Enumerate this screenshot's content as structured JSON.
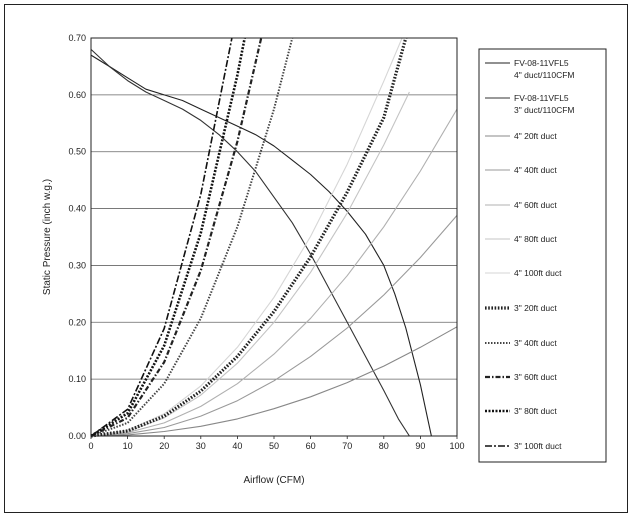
{
  "chart_data": {
    "type": "line",
    "title": "",
    "xlabel": "Airflow (CFM)",
    "ylabel": "Static Pressure (inch w.g.)",
    "xlim": [
      0,
      100
    ],
    "ylim": [
      0,
      0.7
    ],
    "xticks": [
      "0",
      "10",
      "20",
      "30",
      "40",
      "50",
      "60",
      "70",
      "80",
      "90",
      "100"
    ],
    "yticks": [
      "0.00",
      "0.10",
      "0.20",
      "0.30",
      "0.40",
      "0.50",
      "0.60",
      "0.70"
    ],
    "grid": "horizontal",
    "legend_position": "right",
    "series": [
      {
        "name": "FV-08-11VFL5\n4\" duct/110CFM",
        "color": "#222222",
        "width": 1.1,
        "dash": "",
        "x": [
          0,
          5,
          10,
          15,
          20,
          25,
          30,
          35,
          40,
          45,
          50,
          55,
          60,
          65,
          70,
          75,
          80,
          83,
          86,
          88,
          90,
          92,
          93
        ],
        "y": [
          0.67,
          0.65,
          0.63,
          0.61,
          0.6,
          0.59,
          0.575,
          0.56,
          0.545,
          0.53,
          0.51,
          0.485,
          0.46,
          0.43,
          0.395,
          0.355,
          0.3,
          0.25,
          0.19,
          0.14,
          0.09,
          0.03,
          0.0
        ]
      },
      {
        "name": "FV-08-11VFL5\n3\" duct/110CFM",
        "color": "#333333",
        "width": 1.1,
        "dash": "",
        "x": [
          0,
          5,
          10,
          15,
          20,
          25,
          30,
          35,
          40,
          45,
          50,
          55,
          60,
          65,
          70,
          75,
          80,
          84,
          87
        ],
        "y": [
          0.68,
          0.65,
          0.625,
          0.605,
          0.59,
          0.575,
          0.555,
          0.53,
          0.5,
          0.465,
          0.42,
          0.375,
          0.32,
          0.26,
          0.2,
          0.14,
          0.08,
          0.03,
          0.0
        ]
      },
      {
        "name": "4\" 20ft duct",
        "color": "#888888",
        "width": 1.1,
        "dash": "",
        "x": [
          0,
          10,
          20,
          30,
          40,
          50,
          60,
          70,
          80,
          90,
          100
        ],
        "y": [
          0.0,
          0.002,
          0.008,
          0.017,
          0.03,
          0.048,
          0.069,
          0.094,
          0.123,
          0.156,
          0.192
        ]
      },
      {
        "name": "4\" 40ft duct",
        "color": "#9a9a9a",
        "width": 1.1,
        "dash": "",
        "x": [
          0,
          10,
          20,
          30,
          40,
          50,
          60,
          70,
          80,
          90,
          100
        ],
        "y": [
          0.0,
          0.004,
          0.015,
          0.035,
          0.062,
          0.097,
          0.14,
          0.19,
          0.248,
          0.314,
          0.388
        ]
      },
      {
        "name": "4\" 60ft duct",
        "color": "#b0b0b0",
        "width": 1.1,
        "dash": "",
        "x": [
          0,
          10,
          20,
          30,
          40,
          50,
          60,
          70,
          80,
          90,
          100
        ],
        "y": [
          0.0,
          0.006,
          0.023,
          0.052,
          0.092,
          0.144,
          0.207,
          0.282,
          0.368,
          0.466,
          0.575
        ]
      },
      {
        "name": "4\" 80ft duct",
        "color": "#c4c4c4",
        "width": 1.1,
        "dash": "",
        "x": [
          0,
          10,
          20,
          30,
          40,
          50,
          60,
          70,
          80,
          87
        ],
        "y": [
          0.0,
          0.008,
          0.032,
          0.072,
          0.128,
          0.2,
          0.288,
          0.392,
          0.512,
          0.605
        ]
      },
      {
        "name": "4\" 100ft duct",
        "color": "#d6d6d6",
        "width": 1.1,
        "dash": "",
        "x": [
          0,
          10,
          20,
          30,
          40,
          50,
          60,
          70,
          80,
          85
        ],
        "y": [
          0.0,
          0.01,
          0.039,
          0.088,
          0.156,
          0.244,
          0.351,
          0.478,
          0.624,
          0.7
        ]
      },
      {
        "name": "3\" 20ft duct",
        "color": "#222222",
        "width": 3.2,
        "dash": "1.6,1.6",
        "x": [
          0,
          10,
          20,
          30,
          40,
          50,
          60,
          70,
          80,
          86
        ],
        "y": [
          0.0,
          0.009,
          0.035,
          0.079,
          0.14,
          0.219,
          0.315,
          0.429,
          0.56,
          0.7
        ]
      },
      {
        "name": "3\" 40ft duct",
        "color": "#444444",
        "width": 2.0,
        "dash": "1.5,1.5",
        "x": [
          0,
          10,
          20,
          30,
          40,
          50,
          55
        ],
        "y": [
          0.0,
          0.023,
          0.092,
          0.207,
          0.368,
          0.575,
          0.7
        ]
      },
      {
        "name": "3\" 60ft duct",
        "color": "#222222",
        "width": 2.2,
        "dash": "5,2,1.5,2",
        "x": [
          0,
          10,
          20,
          30,
          40,
          46.5
        ],
        "y": [
          0.0,
          0.032,
          0.13,
          0.291,
          0.518,
          0.7
        ]
      },
      {
        "name": "3\" 80ft duct",
        "color": "#111111",
        "width": 2.6,
        "dash": "2,1.5",
        "x": [
          0,
          10,
          20,
          30,
          40,
          42
        ],
        "y": [
          0.0,
          0.04,
          0.159,
          0.357,
          0.635,
          0.7
        ]
      },
      {
        "name": "3\" 100ft duct",
        "color": "#111111",
        "width": 1.6,
        "dash": "7,2,2,2",
        "x": [
          0,
          10,
          20,
          30,
          38.5
        ],
        "y": [
          0.0,
          0.047,
          0.189,
          0.425,
          0.7
        ]
      }
    ]
  }
}
